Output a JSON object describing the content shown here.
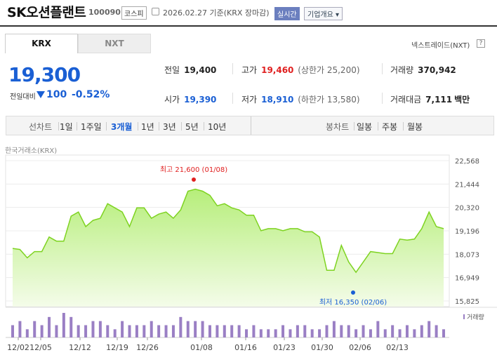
{
  "header": {
    "name": "SK오션플랜트",
    "code": "100090",
    "market": "코스피",
    "date": "2026.02.27 기준(KRX 장마감)",
    "realtime": "실시간",
    "corp_info": "기업개요 ▾"
  },
  "tabs": {
    "krx": "KRX",
    "nxt": "NXT",
    "nxt_link": "넥스트레이드(NXT)",
    "help": "?"
  },
  "price": {
    "current": "19,300",
    "change_label": "전일대비",
    "change_value": "100",
    "change_pct": "-0.52%"
  },
  "stats": {
    "prev_close": {
      "label": "전일",
      "value": "19,400"
    },
    "high": {
      "label": "고가",
      "value": "19,460",
      "extra": "(상한가 25,200)"
    },
    "volume": {
      "label": "거래량",
      "value": "370,942"
    },
    "open": {
      "label": "시가",
      "value": "19,390"
    },
    "low": {
      "label": "저가",
      "value": "18,910",
      "extra": "(하한가 13,580)"
    },
    "amount": {
      "label": "거래대금",
      "value": "7,111",
      "unit": "백만"
    }
  },
  "period": {
    "label": "선차트",
    "items": [
      "1일",
      "1주일",
      "3개월",
      "1년",
      "3년",
      "5년",
      "10년"
    ],
    "active": "3개월",
    "candle_label": "봉차트",
    "candle_items": [
      "일봉",
      "주봉",
      "월봉"
    ]
  },
  "chart_data": {
    "type": "area",
    "source": "한국거래소(KRX)",
    "y_ticks": [
      "22,568",
      "21,444",
      "20,320",
      "19,196",
      "18,073",
      "16,949",
      "15,825"
    ],
    "ylim": [
      15825,
      22568
    ],
    "x_ticks": [
      "12/02",
      "12/05",
      "12/12",
      "12/19",
      "12/26",
      "01/08",
      "01/16",
      "01/23",
      "01/30",
      "02/06",
      "02/13"
    ],
    "high_annotation": "최고 21,600 (01/08)",
    "low_annotation": "최저 16,350 (02/06)",
    "volume_label": "거래량",
    "colors": {
      "line": "#7ed321",
      "fill_top": "#b6ee7a",
      "high": "#e02020",
      "low": "#1a5fd4",
      "volume": "#9a7fc4"
    },
    "values": [
      18350,
      18300,
      17900,
      18200,
      18200,
      18900,
      18700,
      18700,
      19900,
      20100,
      19400,
      19700,
      19800,
      20500,
      20300,
      20100,
      19400,
      20300,
      20300,
      19800,
      20000,
      20100,
      19800,
      20200,
      21100,
      21200,
      21100,
      20900,
      20400,
      20500,
      20300,
      20200,
      19950,
      19950,
      19200,
      19300,
      19300,
      19200,
      19300,
      19300,
      19150,
      19150,
      18900,
      17300,
      17300,
      18500,
      17700,
      17200,
      17700,
      18200,
      18150,
      18100,
      18100,
      18800,
      18750,
      18800,
      19300,
      20100,
      19400,
      19300
    ],
    "volume": [
      3,
      4,
      2,
      4,
      3,
      5,
      3,
      6,
      5,
      3,
      3,
      4,
      4,
      3,
      2,
      4,
      3,
      3,
      3,
      4,
      3,
      3,
      3,
      5,
      4,
      4,
      4,
      3,
      3,
      3,
      3,
      3,
      2,
      3,
      2,
      2,
      2,
      3,
      2,
      3,
      3,
      2,
      2,
      3,
      4,
      3,
      3,
      2,
      3,
      2,
      4,
      2,
      3,
      2,
      3,
      2,
      3,
      4,
      3,
      2
    ]
  }
}
